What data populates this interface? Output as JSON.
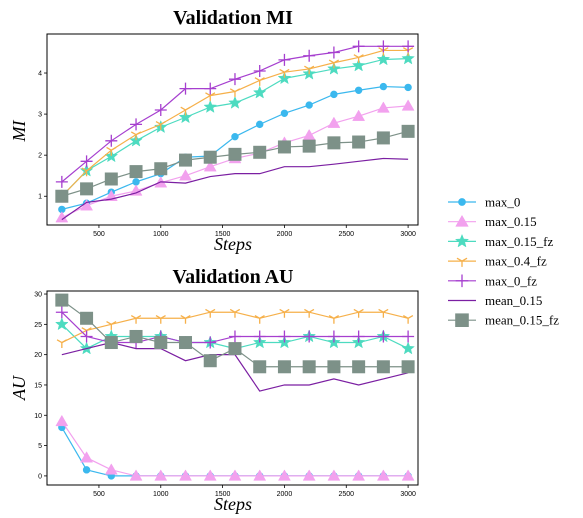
{
  "chart_data": [
    {
      "type": "line",
      "title": "Validation MI",
      "xlabel": "Steps",
      "ylabel": "MI",
      "xlim": [
        80,
        3080
      ],
      "ylim": [
        0.3,
        4.95
      ],
      "xticks": [
        500,
        1000,
        1500,
        2000,
        2500,
        3000
      ],
      "yticks": [
        1,
        2,
        3,
        4
      ],
      "series": [
        {
          "name": "max_0",
          "x": [
            200,
            400,
            600,
            800,
            1000,
            1200,
            1400,
            1600,
            1800,
            2000,
            2200,
            2400,
            2600,
            2800,
            3000
          ],
          "values": [
            0.68,
            0.83,
            1.1,
            1.35,
            1.55,
            1.95,
            1.98,
            2.45,
            2.75,
            3.02,
            3.22,
            3.48,
            3.58,
            3.67,
            3.65
          ]
        },
        {
          "name": "max_0.15",
          "x": [
            200,
            400,
            600,
            800,
            1000,
            1200,
            1400,
            1600,
            1800,
            2000,
            2200,
            2400,
            2600,
            2800,
            3000
          ],
          "values": [
            0.48,
            0.77,
            1.0,
            1.13,
            1.33,
            1.5,
            1.72,
            1.92,
            2.05,
            2.3,
            2.48,
            2.78,
            2.95,
            3.15,
            3.2
          ]
        },
        {
          "name": "max_0.15_fz",
          "x": [
            200,
            400,
            600,
            800,
            1000,
            1200,
            1400,
            1600,
            1800,
            2000,
            2200,
            2400,
            2600,
            2800,
            3000
          ],
          "values": [
            1.0,
            1.62,
            1.97,
            2.35,
            2.68,
            2.92,
            3.17,
            3.27,
            3.52,
            3.87,
            3.98,
            4.1,
            4.18,
            4.33,
            4.35
          ]
        },
        {
          "name": "max_0.4_fz",
          "x": [
            200,
            400,
            600,
            800,
            1000,
            1200,
            1400,
            1600,
            1800,
            2000,
            2200,
            2400,
            2600,
            2800,
            3000
          ],
          "values": [
            1.0,
            1.62,
            2.12,
            2.5,
            2.75,
            3.1,
            3.45,
            3.55,
            3.82,
            4.02,
            4.1,
            4.25,
            4.38,
            4.55,
            4.55
          ]
        },
        {
          "name": "max_0_fz",
          "x": [
            200,
            400,
            600,
            800,
            1000,
            1200,
            1400,
            1600,
            1800,
            2000,
            2200,
            2400,
            2600,
            2800,
            3000
          ],
          "values": [
            1.35,
            1.85,
            2.35,
            2.75,
            3.1,
            3.62,
            3.62,
            3.85,
            4.05,
            4.32,
            4.42,
            4.5,
            4.65,
            4.65,
            4.65
          ]
        },
        {
          "name": "mean_0.15",
          "x": [
            200,
            400,
            600,
            800,
            1000,
            1200,
            1400,
            1600,
            1800,
            2000,
            2200,
            2400,
            2600,
            2800,
            3000
          ],
          "values": [
            0.43,
            0.85,
            0.93,
            1.08,
            1.35,
            1.32,
            1.48,
            1.55,
            1.55,
            1.72,
            1.72,
            1.78,
            1.85,
            1.92,
            1.9
          ]
        },
        {
          "name": "mean_0.15_fz",
          "x": [
            200,
            400,
            600,
            800,
            1000,
            1200,
            1400,
            1600,
            1800,
            2000,
            2200,
            2400,
            2600,
            2800,
            3000
          ],
          "values": [
            1.0,
            1.18,
            1.42,
            1.6,
            1.67,
            1.88,
            1.95,
            2.02,
            2.07,
            2.2,
            2.22,
            2.3,
            2.32,
            2.42,
            2.58
          ]
        }
      ]
    },
    {
      "type": "line",
      "title": "Validation AU",
      "xlabel": "Steps",
      "ylabel": "AU",
      "xlim": [
        80,
        3080
      ],
      "ylim": [
        -1.5,
        30.5
      ],
      "xticks": [
        500,
        1000,
        1500,
        2000,
        2500,
        3000
      ],
      "yticks": [
        0,
        5,
        10,
        15,
        20,
        25,
        30
      ],
      "series": [
        {
          "name": "max_0",
          "x": [
            200,
            400,
            600,
            800,
            1000,
            1200,
            1400,
            1600,
            1800,
            2000,
            2200,
            2400,
            2600,
            2800,
            3000
          ],
          "values": [
            8,
            1,
            0,
            0,
            0,
            0,
            0,
            0,
            0,
            0,
            0,
            0,
            0,
            0,
            0
          ]
        },
        {
          "name": "max_0.15",
          "x": [
            200,
            400,
            600,
            800,
            1000,
            1200,
            1400,
            1600,
            1800,
            2000,
            2200,
            2400,
            2600,
            2800,
            3000
          ],
          "values": [
            9,
            3,
            1,
            0,
            0,
            0,
            0,
            0,
            0,
            0,
            0,
            0,
            0,
            0,
            0
          ]
        },
        {
          "name": "max_0.15_fz",
          "x": [
            200,
            400,
            600,
            800,
            1000,
            1200,
            1400,
            1600,
            1800,
            2000,
            2200,
            2400,
            2600,
            2800,
            3000
          ],
          "values": [
            25,
            21,
            23,
            23,
            23,
            22,
            22,
            21,
            22,
            22,
            23,
            22,
            22,
            23,
            21
          ]
        },
        {
          "name": "max_0.4_fz",
          "x": [
            200,
            400,
            600,
            800,
            1000,
            1200,
            1400,
            1600,
            1800,
            2000,
            2200,
            2400,
            2600,
            2800,
            3000
          ],
          "values": [
            22,
            24,
            25,
            26,
            26,
            26,
            27,
            27,
            26,
            27,
            27,
            26,
            27,
            27,
            26
          ]
        },
        {
          "name": "max_0_fz",
          "x": [
            200,
            400,
            600,
            800,
            1000,
            1200,
            1400,
            1600,
            1800,
            2000,
            2200,
            2400,
            2600,
            2800,
            3000
          ],
          "values": [
            27,
            23,
            22,
            22,
            23,
            22,
            22,
            23,
            23,
            23,
            23,
            23,
            23,
            23,
            23
          ]
        },
        {
          "name": "mean_0.15",
          "x": [
            200,
            400,
            600,
            800,
            1000,
            1200,
            1400,
            1600,
            1800,
            2000,
            2200,
            2400,
            2600,
            2800,
            3000
          ],
          "values": [
            20,
            21,
            22,
            21,
            21,
            19,
            20,
            20,
            14,
            15,
            15,
            16,
            15,
            16,
            17
          ]
        },
        {
          "name": "mean_0.15_fz",
          "x": [
            200,
            400,
            600,
            800,
            1000,
            1200,
            1400,
            1600,
            1800,
            2000,
            2200,
            2400,
            2600,
            2800,
            3000
          ],
          "values": [
            29,
            26,
            22,
            23,
            22,
            22,
            19,
            21,
            18,
            18,
            18,
            18,
            18,
            18,
            18
          ]
        }
      ]
    }
  ],
  "style": {
    "colors": {
      "max_0": "#3bb8ee",
      "max_0.15": "#f2a1ee",
      "max_0.15_fz": "#4ddbc0",
      "max_0.4_fz": "#f6b04a",
      "max_0_fz": "#a63fcf",
      "mean_0.15": "#7b1fa2",
      "mean_0.15_fz": "#7d9188"
    },
    "markers": {
      "max_0": "circle",
      "max_0.15": "triangle",
      "max_0.15_fz": "star",
      "max_0.4_fz": "tri",
      "max_0_fz": "plus",
      "mean_0.15": "none",
      "mean_0.15_fz": "square"
    },
    "legend_position": "right"
  }
}
